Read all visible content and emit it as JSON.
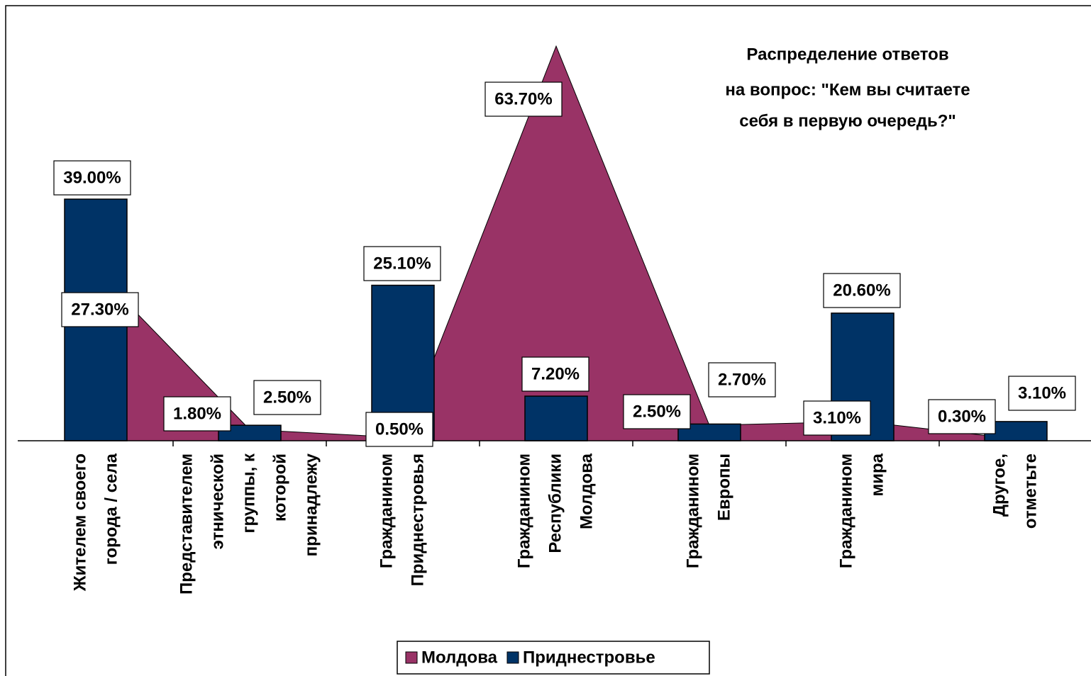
{
  "chart_data": {
    "type": "combo",
    "title": [
      "Распределение ответов",
      "на вопрос: \"Кем вы считаете",
      "себя в первую очередь?\""
    ],
    "categories": [
      [
        "Жителем своего",
        "города / села"
      ],
      [
        "Представителем",
        "этнической",
        "группы, к",
        "которой",
        "принадлежу"
      ],
      [
        "Гражданином",
        "Приднестровья"
      ],
      [
        "Гражданином",
        "Республики",
        "Молдова"
      ],
      [
        "Гражданином",
        "Европы"
      ],
      [
        "Гражданином",
        "мира"
      ],
      [
        "Другое,",
        "отметьте"
      ]
    ],
    "series": [
      {
        "name": "Молдова",
        "type": "area",
        "color": "#993366",
        "values": [
          27.3,
          1.8,
          0.5,
          63.7,
          2.5,
          3.1,
          0.3
        ],
        "value_labels": [
          "27.30%",
          "1.80%",
          "0.50%",
          "63.70%",
          "2.50%",
          "3.10%",
          "0.30%"
        ]
      },
      {
        "name": "Приднестровье",
        "type": "bar",
        "color": "#003366",
        "values": [
          39.0,
          2.5,
          25.1,
          7.2,
          2.7,
          20.6,
          3.1
        ],
        "value_labels": [
          "39.00%",
          "2.50%",
          "25.10%",
          "7.20%",
          "2.70%",
          "20.60%",
          "3.10%"
        ]
      }
    ],
    "ylim": [
      0,
      70
    ]
  }
}
